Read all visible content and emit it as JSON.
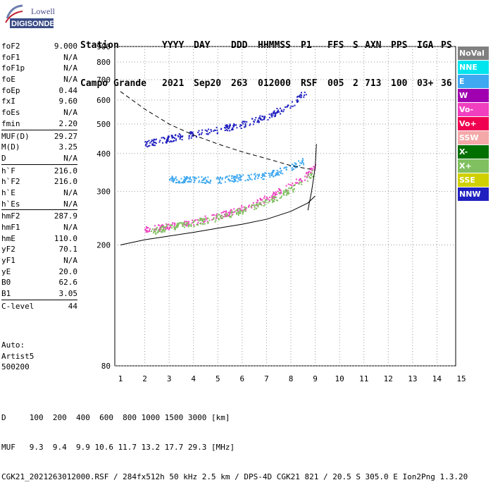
{
  "logo": {
    "line1": "Lowell",
    "line2": "DIGISONDE"
  },
  "header": {
    "labels": [
      "Station",
      "YYYY",
      "DAY",
      "DDD",
      "HHMMSS",
      "P1",
      "FFS",
      "S",
      "AXN",
      "PPS",
      "IGA",
      "PS"
    ],
    "values": [
      "Campo Grande",
      "2021",
      "Sep20",
      "263",
      "012000",
      "RSF",
      "005",
      "2",
      "713",
      "100",
      "03+",
      "36"
    ]
  },
  "params": {
    "group1": [
      {
        "k": "foF2",
        "v": "9.000"
      },
      {
        "k": "foF1",
        "v": "N/A"
      },
      {
        "k": "foF1p",
        "v": "N/A"
      },
      {
        "k": "foE",
        "v": "N/A"
      },
      {
        "k": "foEp",
        "v": "0.44"
      },
      {
        "k": "fxI",
        "v": "9.60"
      },
      {
        "k": "foEs",
        "v": "N/A"
      },
      {
        "k": "fmin",
        "v": "2.20"
      }
    ],
    "group2": [
      {
        "k": "MUF(D)",
        "v": "29.27"
      },
      {
        "k": "M(D)",
        "v": "3.25"
      },
      {
        "k": "D",
        "v": "N/A"
      }
    ],
    "group3": [
      {
        "k": "h`F",
        "v": "216.0"
      },
      {
        "k": "h`F2",
        "v": "216.0"
      },
      {
        "k": "h`E",
        "v": "N/A"
      },
      {
        "k": "h`Es",
        "v": "N/A"
      }
    ],
    "group4": [
      {
        "k": "hmF2",
        "v": "287.9"
      },
      {
        "k": "hmF1",
        "v": "N/A"
      },
      {
        "k": "hmE",
        "v": "110.0"
      },
      {
        "k": "yF2",
        "v": "70.1"
      },
      {
        "k": "yF1",
        "v": "N/A"
      },
      {
        "k": "yE",
        "v": "20.0"
      },
      {
        "k": "B0",
        "v": "62.6"
      },
      {
        "k": "B1",
        "v": "3.05"
      }
    ],
    "group5": [
      {
        "k": "C-level",
        "v": "44"
      }
    ]
  },
  "auto": {
    "line1": "Auto:",
    "line2": "Artist5",
    "line3": "500200"
  },
  "legend": [
    {
      "label": "NoVal",
      "color": "#808080"
    },
    {
      "label": "NNE",
      "color": "#00e5ee"
    },
    {
      "label": "E",
      "color": "#3ea8f0"
    },
    {
      "label": "W",
      "color": "#a000b0"
    },
    {
      "label": "Vo-",
      "color": "#f040c0"
    },
    {
      "label": "Vo+",
      "color": "#f00050"
    },
    {
      "label": "SSW",
      "color": "#f4a8a8"
    },
    {
      "label": "X-",
      "color": "#007000"
    },
    {
      "label": "X+",
      "color": "#80c060"
    },
    {
      "label": "SSE",
      "color": "#d0d000"
    },
    {
      "label": "NNW",
      "color": "#2020c0"
    }
  ],
  "bottom": {
    "line1": "D     100  200  400  600  800 1000 1500 3000 [km]",
    "line2": "MUF   9.3  9.4  9.9 10.6 11.7 13.2 17.7 29.3 [MHz]",
    "line3": "CGK21_2021263012000.RSF / 284fx512h 50 kHz 2.5 km / DPS-4D CGK21 821 / 20.5 S 305.0 E Ion2Png 1.3.20"
  },
  "chart_data": {
    "type": "scatter",
    "x": {
      "min": 1,
      "max": 15,
      "ticks": [
        1,
        2,
        3,
        4,
        5,
        6,
        7,
        8,
        9,
        10,
        11,
        12,
        13,
        14,
        15
      ]
    },
    "y": {
      "min": 80,
      "max": 900,
      "ticks": [
        80,
        200,
        300,
        400,
        500,
        600,
        700,
        800,
        900
      ],
      "scale": "log"
    },
    "grid": true,
    "legend_placement": "right",
    "series": [
      {
        "name": "Vo-",
        "color": "#f040c0",
        "points": [
          [
            2,
            225
          ],
          [
            3,
            232
          ],
          [
            4,
            240
          ],
          [
            5,
            250
          ],
          [
            6,
            265
          ],
          [
            7,
            285
          ],
          [
            8,
            315
          ],
          [
            8.5,
            335
          ],
          [
            9,
            365
          ]
        ]
      },
      {
        "name": "E",
        "color": "#3ea8f0",
        "points": [
          [
            3,
            330
          ],
          [
            4,
            330
          ],
          [
            5,
            328
          ],
          [
            6,
            335
          ],
          [
            7,
            340
          ],
          [
            8,
            360
          ],
          [
            8.5,
            380
          ]
        ]
      },
      {
        "name": "NNW",
        "color": "#2020c0",
        "points": [
          [
            2,
            430
          ],
          [
            3,
            450
          ],
          [
            4,
            465
          ],
          [
            5,
            480
          ],
          [
            6,
            500
          ],
          [
            7,
            530
          ],
          [
            8,
            580
          ],
          [
            8.6,
            640
          ]
        ]
      },
      {
        "name": "X+",
        "color": "#80c060",
        "points": [
          [
            2.2,
            222
          ],
          [
            3,
            230
          ],
          [
            4,
            237
          ],
          [
            5,
            247
          ],
          [
            6,
            260
          ],
          [
            7,
            278
          ],
          [
            8,
            305
          ],
          [
            9,
            350
          ]
        ]
      }
    ],
    "profile": [
      [
        1,
        200
      ],
      [
        2,
        208
      ],
      [
        3,
        214
      ],
      [
        4,
        220
      ],
      [
        5,
        227
      ],
      [
        6,
        234
      ],
      [
        7,
        243
      ],
      [
        8,
        258
      ],
      [
        8.7,
        275
      ],
      [
        9,
        290
      ]
    ],
    "profile2": [
      [
        8.7,
        260
      ],
      [
        8.85,
        300
      ],
      [
        9,
        360
      ],
      [
        9.05,
        430
      ]
    ],
    "muf_curve": [
      [
        1,
        640
      ],
      [
        2,
        560
      ],
      [
        3,
        500
      ],
      [
        4,
        460
      ],
      [
        5,
        430
      ],
      [
        6,
        405
      ],
      [
        7,
        385
      ],
      [
        8,
        365
      ],
      [
        8.8,
        355
      ]
    ]
  }
}
